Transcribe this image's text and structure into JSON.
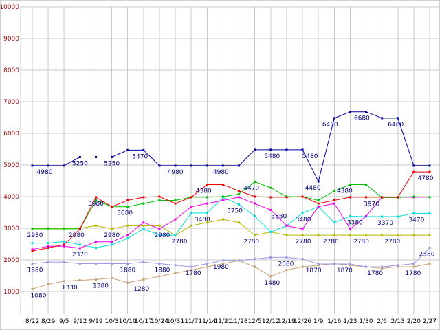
{
  "chart_data": {
    "type": "line",
    "categories": [
      "8/22",
      "8/29",
      "9/5",
      "9/12",
      "9/19",
      "10/3",
      "10/10",
      "10/17",
      "10/24",
      "10/31",
      "11/7",
      "11/14",
      "11/21",
      "11/28",
      "12/5",
      "12/12",
      "12/19",
      "12/26",
      "1/9",
      "1/16",
      "1/23",
      "1/30",
      "2/6",
      "2/13",
      "2/20",
      "2/27"
    ],
    "axis": {
      "y_min": 1000,
      "y_max": 10000,
      "y_step": 1000,
      "y_tick_labels": [
        "10000",
        "9000",
        "8000",
        "7000",
        "6000",
        "5000",
        "4000",
        "3000",
        "2000",
        "1000"
      ],
      "grid": true
    },
    "style": {
      "background": "#ffffff",
      "grid_color": "#c9c9c9",
      "point_label_color": "#000080",
      "y_axis_label_color": "#990000",
      "x_axis_label_color": "#000000"
    },
    "series": [
      {
        "name": "tan",
        "color": "#c8a070",
        "values": [
          1080,
          1230,
          1330,
          1360,
          1380,
          1430,
          1280,
          1380,
          1480,
          1580,
          1680,
          1780,
          1880,
          1980,
          1780,
          1480,
          1680,
          1780,
          1830,
          1880,
          1830,
          1780,
          1730,
          1780,
          1780,
          1880
        ]
      },
      {
        "name": "lavender",
        "color": "#9999e6",
        "values": [
          1880,
          1930,
          1930,
          1880,
          1880,
          1880,
          1880,
          1930,
          1880,
          1830,
          1780,
          1880,
          1980,
          1980,
          2030,
          2080,
          2080,
          2030,
          1870,
          1870,
          1870,
          1780,
          1780,
          1830,
          1880,
          2380
        ]
      },
      {
        "name": "olive",
        "color": "#b8b800",
        "values": [
          2980,
          3000,
          3000,
          3000,
          3080,
          2980,
          3080,
          3080,
          3080,
          2780,
          3080,
          3180,
          3280,
          3180,
          2780,
          2880,
          2780,
          2780,
          2780,
          2780,
          2780,
          2780,
          2780,
          2780,
          2780,
          2780
        ]
      },
      {
        "name": "cyan",
        "color": "#00dcdc",
        "values": [
          2530,
          2530,
          2580,
          2480,
          2380,
          2480,
          2680,
          2980,
          2780,
          2780,
          3480,
          3480,
          3980,
          3750,
          3380,
          2880,
          3080,
          3480,
          3680,
          3180,
          3380,
          3370,
          3370,
          3370,
          3470,
          3470
        ]
      },
      {
        "name": "magenta",
        "color": "#ee00ee",
        "values": [
          2330,
          2430,
          2430,
          2370,
          2570,
          2570,
          2780,
          3180,
          2980,
          3280,
          3680,
          3780,
          3880,
          3980,
          3780,
          3580,
          3080,
          2980,
          3680,
          3780,
          2980,
          3380,
          3980,
          3980,
          3980,
          3980
        ]
      },
      {
        "name": "green",
        "color": "#00c000",
        "values": [
          2980,
          2980,
          2980,
          2980,
          3880,
          3680,
          3680,
          3780,
          3880,
          3880,
          3980,
          3980,
          4000,
          4080,
          4470,
          4280,
          4000,
          4000,
          3880,
          4180,
          4380,
          4380,
          3970,
          3970,
          4000,
          3980
        ]
      },
      {
        "name": "red",
        "color": "#ee0000",
        "values": [
          2280,
          2380,
          2480,
          2980,
          3980,
          3680,
          3880,
          3980,
          4000,
          3780,
          3980,
          4380,
          4380,
          4180,
          4000,
          3980,
          3980,
          4000,
          3780,
          3880,
          3980,
          3980,
          3980,
          3980,
          4780,
          4780
        ]
      },
      {
        "name": "navy",
        "color": "#0000a0",
        "values": [
          4980,
          4980,
          4980,
          5250,
          5250,
          5250,
          5470,
          5470,
          4980,
          4980,
          4980,
          4980,
          4980,
          4980,
          5480,
          5480,
          5480,
          5480,
          4480,
          6480,
          6680,
          6680,
          6480,
          6480,
          4980,
          4980
        ]
      }
    ],
    "annotations": [
      {
        "series": 7,
        "index": 0,
        "text": "4980",
        "dx": 18
      },
      {
        "series": 7,
        "index": 3,
        "text": "5250",
        "dx": 0
      },
      {
        "series": 7,
        "index": 5,
        "text": "5250",
        "dx": 0
      },
      {
        "series": 7,
        "index": 6,
        "text": "5470",
        "dx": 18
      },
      {
        "series": 7,
        "index": 9,
        "text": "4980",
        "dx": 0
      },
      {
        "series": 7,
        "index": 12,
        "text": "4980",
        "dx": -3
      },
      {
        "series": 7,
        "index": 15,
        "text": "5480",
        "dx": 2
      },
      {
        "series": 7,
        "index": 17,
        "text": "5480",
        "dx": 11
      },
      {
        "series": 7,
        "index": 18,
        "text": "4480",
        "dx": -8
      },
      {
        "series": 7,
        "index": 19,
        "text": "6480",
        "dx": -6
      },
      {
        "series": 7,
        "index": 20,
        "text": "6680",
        "dx": 17
      },
      {
        "series": 7,
        "index": 23,
        "text": "6480",
        "dx": -3
      },
      {
        "series": 6,
        "index": 4,
        "text": "3980",
        "dx": 0
      },
      {
        "series": 6,
        "index": 5,
        "text": "3680",
        "dx": 19
      },
      {
        "series": 6,
        "index": 11,
        "text": "4380",
        "dx": -5
      },
      {
        "series": 6,
        "index": 25,
        "text": "4780",
        "dx": -6
      },
      {
        "series": 5,
        "index": 0,
        "text": "2980",
        "dx": 4
      },
      {
        "series": 5,
        "index": 3,
        "text": "2980",
        "dx": -5
      },
      {
        "series": 5,
        "index": 14,
        "text": "4470",
        "dx": -5
      },
      {
        "series": 5,
        "index": 20,
        "text": "4380",
        "dx": -8
      },
      {
        "series": 5,
        "index": 22,
        "text": "3970",
        "dx": -15
      },
      {
        "series": 4,
        "index": 3,
        "text": "2370",
        "dx": 0
      },
      {
        "series": 4,
        "index": 8,
        "text": "2980",
        "dx": 4
      },
      {
        "series": 4,
        "index": 15,
        "text": "3580",
        "dx": 12
      },
      {
        "series": 3,
        "index": 11,
        "text": "3480",
        "dx": -7
      },
      {
        "series": 3,
        "index": 13,
        "text": "3750",
        "dx": -6
      },
      {
        "series": 3,
        "index": 17,
        "text": "3480",
        "dx": 1
      },
      {
        "series": 3,
        "index": 20,
        "text": "3380",
        "dx": 7
      },
      {
        "series": 3,
        "index": 22,
        "text": "3370",
        "dx": 5
      },
      {
        "series": 3,
        "index": 24,
        "text": "3470",
        "dx": 4
      },
      {
        "series": 2,
        "index": 5,
        "text": "2980",
        "dx": 0
      },
      {
        "series": 2,
        "index": 9,
        "text": "2780",
        "dx": 6
      },
      {
        "series": 2,
        "index": 14,
        "text": "2780",
        "dx": -5
      },
      {
        "series": 2,
        "index": 17,
        "text": "2780",
        "dx": 1
      },
      {
        "series": 2,
        "index": 19,
        "text": "2780",
        "dx": -5
      },
      {
        "series": 2,
        "index": 21,
        "text": "2780",
        "dx": -7
      },
      {
        "series": 2,
        "index": 23,
        "text": "2780",
        "dx": -8
      },
      {
        "series": 1,
        "index": 0,
        "text": "1880",
        "dx": 4
      },
      {
        "series": 1,
        "index": 6,
        "text": "1880",
        "dx": 0
      },
      {
        "series": 1,
        "index": 8,
        "text": "1880",
        "dx": 4
      },
      {
        "series": 1,
        "index": 10,
        "text": "1780",
        "dx": 3
      },
      {
        "series": 1,
        "index": 12,
        "text": "1980",
        "dx": -3
      },
      {
        "series": 1,
        "index": 16,
        "text": "2080",
        "dx": -1
      },
      {
        "series": 1,
        "index": 18,
        "text": "1870",
        "dx": -7
      },
      {
        "series": 1,
        "index": 20,
        "text": "1870",
        "dx": -8
      },
      {
        "series": 1,
        "index": 22,
        "text": "1780",
        "dx": -10
      },
      {
        "series": 1,
        "index": 25,
        "text": "2380",
        "dx": -4
      },
      {
        "series": 0,
        "index": 0,
        "text": "1080",
        "dx": 9
      },
      {
        "series": 0,
        "index": 2,
        "text": "1330",
        "dx": 8
      },
      {
        "series": 0,
        "index": 4,
        "text": "1380",
        "dx": 7
      },
      {
        "series": 0,
        "index": 6,
        "text": "1280",
        "dx": 20
      },
      {
        "series": 0,
        "index": 15,
        "text": "1480",
        "dx": 2
      },
      {
        "series": 0,
        "index": 24,
        "text": "1780",
        "dx": -1
      }
    ]
  }
}
